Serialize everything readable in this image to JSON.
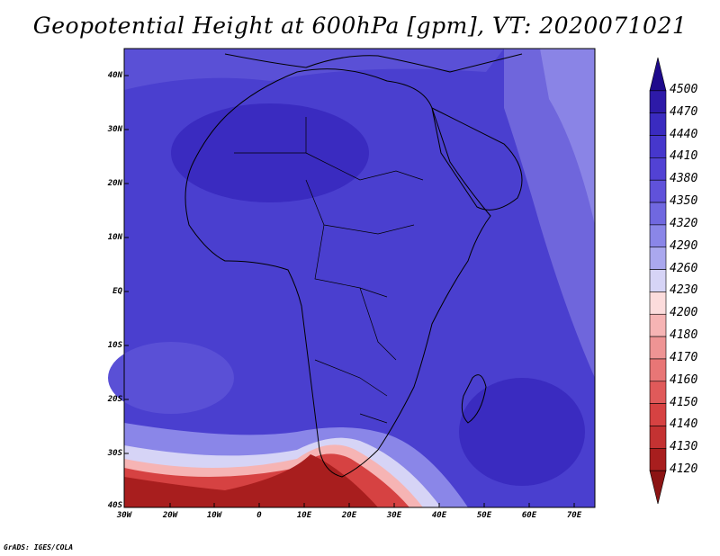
{
  "title": "Geopotential Height at 600hPa [gpm], VT: 2020071021",
  "lat_labels": [
    "40N",
    "30N",
    "20N",
    "10N",
    "EQ",
    "10S",
    "20S",
    "30S",
    "40S"
  ],
  "lon_labels": [
    "30W",
    "20W",
    "10W",
    "0",
    "10E",
    "20E",
    "30E",
    "40E",
    "50E",
    "60E",
    "70E"
  ],
  "colorbar": {
    "labels": [
      "4500",
      "4470",
      "4440",
      "4410",
      "4380",
      "4350",
      "4320",
      "4290",
      "4260",
      "4230",
      "4200",
      "4180",
      "4170",
      "4160",
      "4150",
      "4140",
      "4130",
      "4120"
    ],
    "colors": [
      "#1e0a8c",
      "#2d1aa8",
      "#3a2bc0",
      "#4637cc",
      "#5242d4",
      "#6052da",
      "#7068e0",
      "#8a86e8",
      "#aaa8ee",
      "#d6d4f6",
      "#fcdcdc",
      "#f6b4b4",
      "#ee9494",
      "#e87676",
      "#e05a5a",
      "#d64242",
      "#c43232",
      "#a81e1e",
      "#8c1414"
    ]
  },
  "credit": "GrADS: IGES/COLA"
}
